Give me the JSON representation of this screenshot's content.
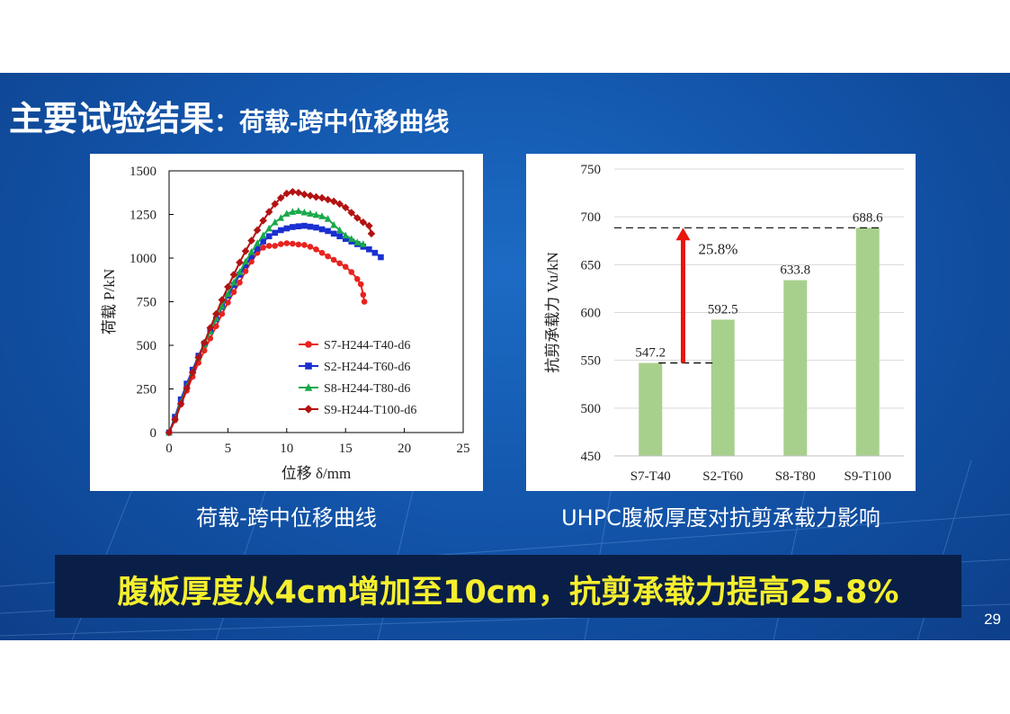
{
  "title": {
    "main": "主要试验结果",
    "sub": "：荷载-跨中位移曲线"
  },
  "captions": {
    "left": "荷载-跨中位移曲线",
    "right": "UHPC腹板厚度对抗剪承载力影响"
  },
  "banner": "腹板厚度从4cm增加至10cm，抗剪承载力提高25.8%",
  "page_number": "29",
  "chart_data": [
    {
      "type": "line",
      "xlabel": "位移 δ/mm",
      "ylabel": "荷载 P/kN",
      "xlim": [
        0,
        25
      ],
      "ylim": [
        0,
        1500
      ],
      "xticks": [
        "0",
        "5",
        "10",
        "15",
        "20",
        "25"
      ],
      "yticks": [
        "0",
        "250",
        "500",
        "750",
        "1000",
        "1250",
        "1500"
      ],
      "legend_position": "bottom-right",
      "series": [
        {
          "name": "S7-H244-T40-d6",
          "color": "#e8231f",
          "marker": "circle",
          "points": [
            [
              0,
              0
            ],
            [
              0.5,
              70
            ],
            [
              1,
              160
            ],
            [
              1.5,
              240
            ],
            [
              2,
              320
            ],
            [
              2.5,
              400
            ],
            [
              3,
              470
            ],
            [
              3.5,
              540
            ],
            [
              4,
              610
            ],
            [
              4.5,
              680
            ],
            [
              5,
              745
            ],
            [
              5.5,
              805
            ],
            [
              6,
              860
            ],
            [
              6.5,
              925
            ],
            [
              7,
              980
            ],
            [
              7.5,
              1030
            ],
            [
              8,
              1060
            ],
            [
              8.5,
              1070
            ],
            [
              9,
              1070
            ],
            [
              9.5,
              1080
            ],
            [
              10,
              1085
            ],
            [
              10.5,
              1082
            ],
            [
              11,
              1078
            ],
            [
              11.5,
              1075
            ],
            [
              12,
              1065
            ],
            [
              12.5,
              1050
            ],
            [
              13,
              1030
            ],
            [
              13.5,
              1010
            ],
            [
              14,
              990
            ],
            [
              14.5,
              970
            ],
            [
              15,
              950
            ],
            [
              15.5,
              920
            ],
            [
              16,
              880
            ],
            [
              16.3,
              850
            ],
            [
              16.5,
              790
            ],
            [
              16.6,
              750
            ]
          ]
        },
        {
          "name": "S2-H244-T60-d6",
          "color": "#1a2fd1",
          "marker": "square",
          "points": [
            [
              0,
              0
            ],
            [
              0.5,
              90
            ],
            [
              1,
              190
            ],
            [
              1.5,
              280
            ],
            [
              2,
              360
            ],
            [
              2.5,
              440
            ],
            [
              3,
              510
            ],
            [
              3.5,
              580
            ],
            [
              4,
              650
            ],
            [
              4.5,
              720
            ],
            [
              5,
              785
            ],
            [
              5.5,
              845
            ],
            [
              6,
              905
            ],
            [
              6.5,
              960
            ],
            [
              7,
              1010
            ],
            [
              7.5,
              1055
            ],
            [
              8,
              1095
            ],
            [
              8.5,
              1125
            ],
            [
              9,
              1145
            ],
            [
              9.5,
              1160
            ],
            [
              10,
              1170
            ],
            [
              10.5,
              1178
            ],
            [
              11,
              1182
            ],
            [
              11.5,
              1185
            ],
            [
              12,
              1180
            ],
            [
              12.5,
              1175
            ],
            [
              13,
              1165
            ],
            [
              13.5,
              1155
            ],
            [
              14,
              1140
            ],
            [
              14.5,
              1125
            ],
            [
              15,
              1110
            ],
            [
              15.5,
              1095
            ],
            [
              16,
              1080
            ],
            [
              16.5,
              1065
            ],
            [
              17,
              1050
            ],
            [
              17.5,
              1030
            ],
            [
              18,
              1005
            ]
          ]
        },
        {
          "name": "S8-H244-T80-d6",
          "color": "#18a84a",
          "marker": "triangle",
          "points": [
            [
              0,
              0
            ],
            [
              0.5,
              80
            ],
            [
              1,
              175
            ],
            [
              1.5,
              265
            ],
            [
              2,
              350
            ],
            [
              2.5,
              430
            ],
            [
              3,
              505
            ],
            [
              3.5,
              580
            ],
            [
              4,
              655
            ],
            [
              4.5,
              725
            ],
            [
              5,
              795
            ],
            [
              5.5,
              860
            ],
            [
              6,
              920
            ],
            [
              6.5,
              980
            ],
            [
              7,
              1035
            ],
            [
              7.5,
              1085
            ],
            [
              8,
              1130
            ],
            [
              8.5,
              1170
            ],
            [
              9,
              1205
            ],
            [
              9.5,
              1230
            ],
            [
              10,
              1255
            ],
            [
              10.5,
              1265
            ],
            [
              11,
              1270
            ],
            [
              11.5,
              1262
            ],
            [
              12,
              1255
            ],
            [
              12.5,
              1248
            ],
            [
              13,
              1240
            ],
            [
              13.5,
              1225
            ],
            [
              14,
              1190
            ],
            [
              14.5,
              1160
            ],
            [
              15,
              1130
            ],
            [
              15.5,
              1110
            ],
            [
              16,
              1090
            ],
            [
              16.5,
              1080
            ]
          ]
        },
        {
          "name": "S9-H244-T100-d6",
          "color": "#b31212",
          "marker": "diamond",
          "points": [
            [
              0,
              0
            ],
            [
              0.5,
              75
            ],
            [
              1,
              165
            ],
            [
              1.5,
              255
            ],
            [
              2,
              345
            ],
            [
              2.5,
              430
            ],
            [
              3,
              515
            ],
            [
              3.5,
              600
            ],
            [
              4,
              680
            ],
            [
              4.5,
              760
            ],
            [
              5,
              835
            ],
            [
              5.5,
              905
            ],
            [
              6,
              975
            ],
            [
              6.5,
              1040
            ],
            [
              7,
              1100
            ],
            [
              7.5,
              1160
            ],
            [
              8,
              1215
            ],
            [
              8.5,
              1265
            ],
            [
              9,
              1310
            ],
            [
              9.5,
              1345
            ],
            [
              10,
              1370
            ],
            [
              10.5,
              1380
            ],
            [
              11,
              1375
            ],
            [
              11.5,
              1365
            ],
            [
              12,
              1358
            ],
            [
              12.5,
              1350
            ],
            [
              13,
              1345
            ],
            [
              13.5,
              1335
            ],
            [
              14,
              1325
            ],
            [
              14.5,
              1310
            ],
            [
              15,
              1290
            ],
            [
              15.5,
              1260
            ],
            [
              16,
              1230
            ],
            [
              16.5,
              1205
            ],
            [
              17,
              1185
            ],
            [
              17.2,
              1140
            ]
          ]
        }
      ]
    },
    {
      "type": "bar",
      "ylabel": "抗剪承载力 Vu/kN",
      "ylim": [
        450,
        750
      ],
      "yticks": [
        "450",
        "500",
        "550",
        "600",
        "650",
        "700",
        "750"
      ],
      "categories": [
        "S7-T40",
        "S2-T60",
        "S8-T80",
        "S9-T100"
      ],
      "values": [
        547.2,
        592.5,
        633.8,
        688.6
      ],
      "value_labels": [
        "547.2",
        "592.5",
        "633.8",
        "688.6"
      ],
      "bar_color": "#a8d08d",
      "annotation": {
        "text": "25.8%",
        "from": 547.2,
        "to": 688.6,
        "color": "#e8160c"
      }
    }
  ]
}
